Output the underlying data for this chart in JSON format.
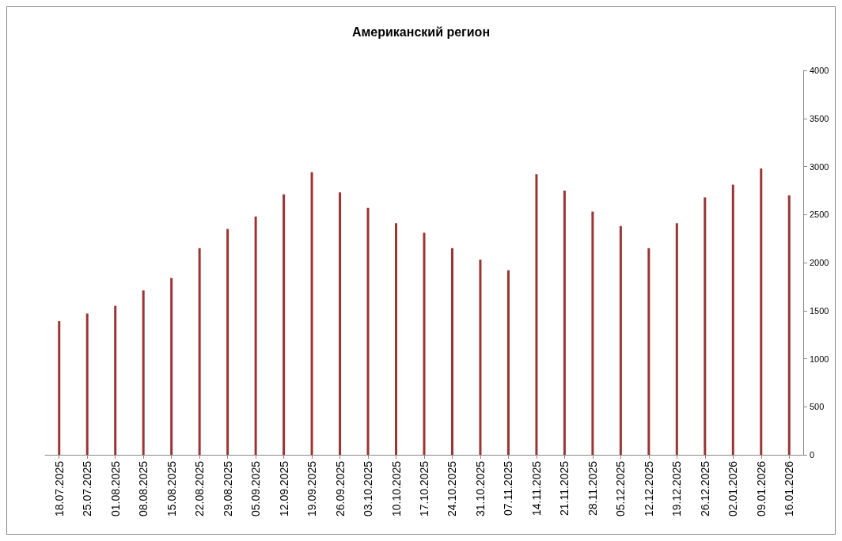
{
  "chart_data": {
    "type": "bar",
    "title": "Американский регион",
    "categories": [
      "18.07.2025",
      "25.07.2025",
      "01.08.2025",
      "08.08.2025",
      "15.08.2025",
      "22.08.2025",
      "29.08.2025",
      "05.09.2025",
      "12.09.2025",
      "19.09.2025",
      "26.09.2025",
      "03.10.2025",
      "10.10.2025",
      "17.10.2025",
      "24.10.2025",
      "31.10.2025",
      "07.11.2025",
      "14.11.2025",
      "21.11.2025",
      "28.11.2025",
      "05.12.2025",
      "12.12.2025",
      "19.12.2025",
      "26.12.2025",
      "02.01.2026",
      "09.01.2026",
      "16.01.2026"
    ],
    "values": [
      1390,
      1470,
      1550,
      1710,
      1840,
      2150,
      2350,
      2480,
      2710,
      2940,
      2730,
      2570,
      2410,
      2310,
      2150,
      2030,
      1920,
      2920,
      2750,
      2530,
      2380,
      2150,
      2410,
      2680,
      2810,
      2980,
      2700
    ],
    "color": "#9b3434",
    "ylim": [
      0,
      4000
    ],
    "yticks": [
      0,
      500,
      1000,
      1500,
      2000,
      2500,
      3000,
      3500,
      4000
    ],
    "grid": false
  }
}
